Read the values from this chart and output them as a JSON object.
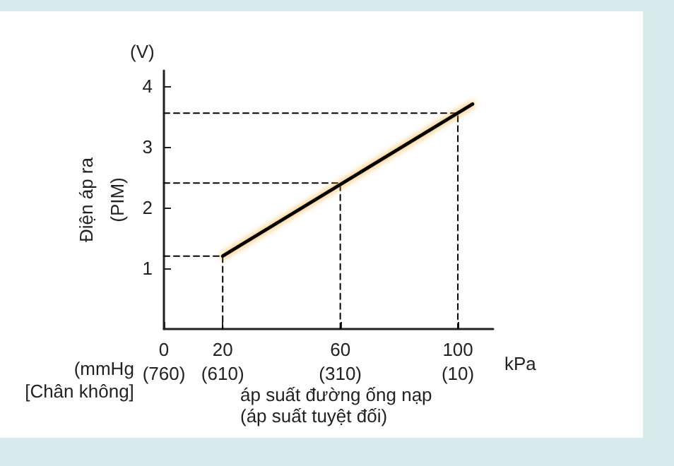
{
  "chart_data": {
    "type": "line",
    "xlabel": "kPa",
    "x2label": "(mmHg\n[Chân không]",
    "ylabel": "Điện áp ra\n(PIM)",
    "annotations": [
      "(V)",
      "áp suất đường ống nạp\n(áp suất tuyệt đối)"
    ],
    "series": [
      {
        "color": "#000000",
        "x": [
          20,
          105
        ],
        "values": [
          1.2,
          3.7
        ]
      },
      {
        "type": "line",
        "line_style": "dashed",
        "color": "#000000",
        "x": [
          0,
          20,
          20
        ],
        "values": [
          1.2,
          1.2,
          0
        ]
      },
      {
        "type": "line",
        "line_style": "dashed",
        "color": "#000000",
        "x": [
          0,
          60,
          60
        ],
        "values": [
          2.4,
          2.4,
          0
        ]
      },
      {
        "type": "line",
        "line_style": "dashed",
        "color": "#000000",
        "x": [
          0,
          100,
          100
        ],
        "values": [
          3.55,
          3.55,
          0
        ]
      }
    ],
    "xlim": [
      0,
      112
    ],
    "xticks": [
      0,
      20,
      60,
      100
    ],
    "x2lim": [
      760,
      -80
    ],
    "x2ticks": [
      {
        "value": 760,
        "label": "(760)"
      },
      {
        "value": 610,
        "label": "(610)"
      },
      {
        "value": 310,
        "label": "(310)"
      },
      {
        "value": 10,
        "label": "(10)"
      }
    ],
    "ylim": [
      0,
      4.25
    ],
    "yticks": [
      1,
      2,
      3,
      4
    ],
    "grid": false,
    "marker": "none",
    "line_style": "solid"
  }
}
